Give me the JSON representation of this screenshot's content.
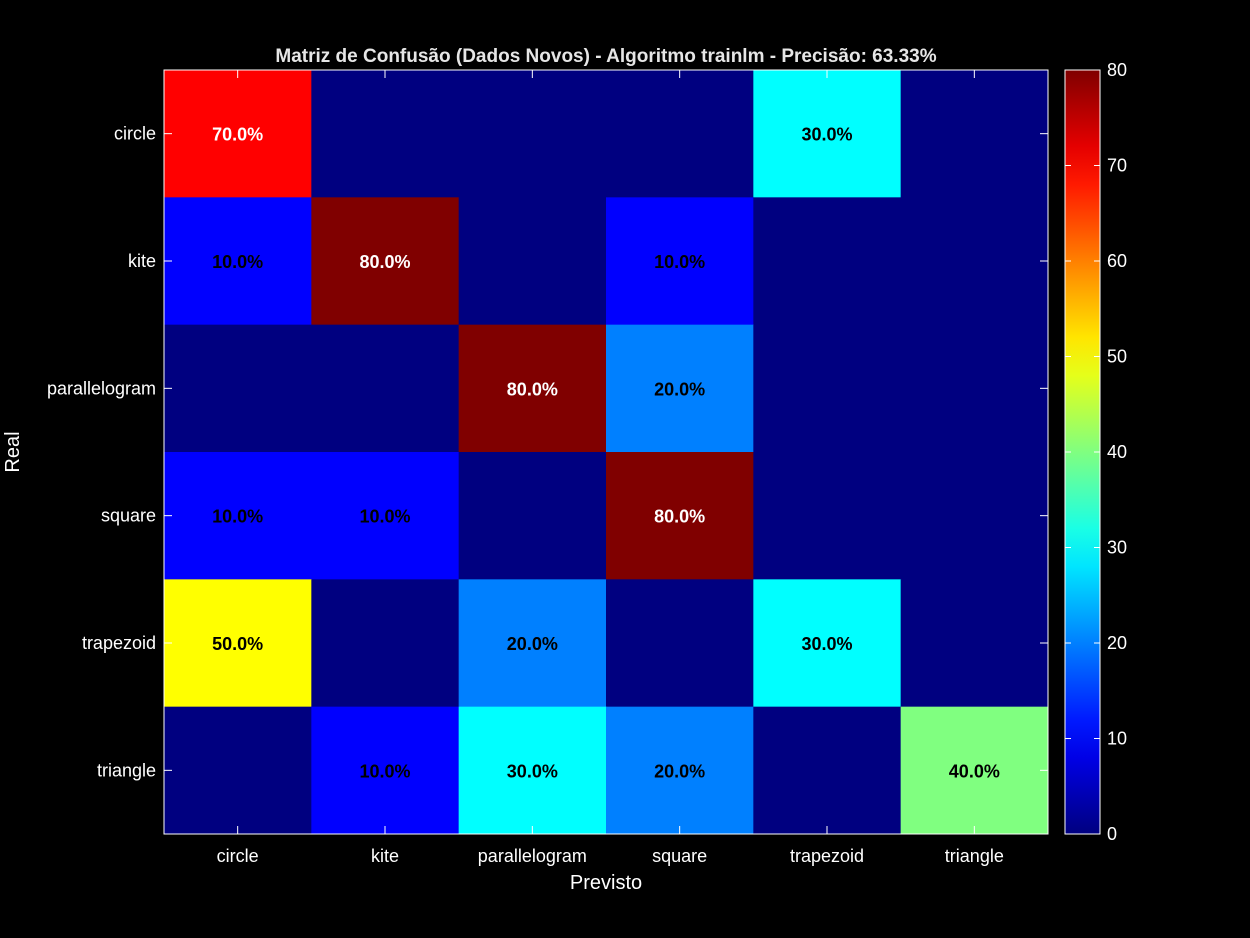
{
  "chart_data": {
    "type": "heatmap",
    "title": "Matriz de Confusão (Dados Novos) - Algoritmo trainlm - Precisão: 63.33%",
    "xlabel": "Previsto",
    "ylabel": "Real",
    "x_categories": [
      "circle",
      "kite",
      "parallelogram",
      "square",
      "trapezoid",
      "triangle"
    ],
    "y_categories": [
      "circle",
      "kite",
      "parallelogram",
      "square",
      "trapezoid",
      "triangle"
    ],
    "values": [
      [
        70,
        0,
        0,
        0,
        30,
        0
      ],
      [
        10,
        80,
        0,
        10,
        0,
        0
      ],
      [
        0,
        0,
        80,
        20,
        0,
        0
      ],
      [
        10,
        10,
        0,
        80,
        0,
        0
      ],
      [
        50,
        0,
        20,
        0,
        30,
        0
      ],
      [
        0,
        10,
        30,
        20,
        0,
        40
      ]
    ],
    "labels": [
      [
        "70.0%",
        "",
        "",
        "",
        "30.0%",
        ""
      ],
      [
        "10.0%",
        "80.0%",
        "",
        "10.0%",
        "",
        ""
      ],
      [
        "",
        "",
        "80.0%",
        "20.0%",
        "",
        ""
      ],
      [
        "10.0%",
        "10.0%",
        "",
        "80.0%",
        "",
        ""
      ],
      [
        "50.0%",
        "",
        "20.0%",
        "",
        "30.0%",
        ""
      ],
      [
        "",
        "10.0%",
        "30.0%",
        "20.0%",
        "",
        "40.0%"
      ]
    ],
    "colormap": "jet",
    "clim": [
      0,
      80
    ],
    "colorbar_ticks": [
      0,
      10,
      20,
      30,
      40,
      50,
      60,
      70,
      80
    ],
    "colorbar_position": "right",
    "background": "#000000",
    "text_color": "#ffffff"
  }
}
